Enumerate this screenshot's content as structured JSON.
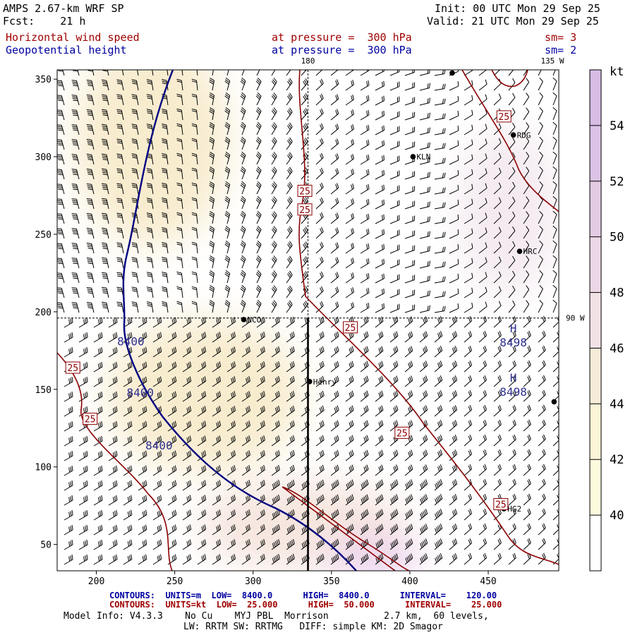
{
  "header": {
    "model": "AMPS 2.67-km WRF SP",
    "forecast": "Fcst:    21 h",
    "init": "Init: 00 UTC Mon 29 Sep 25",
    "valid": "Valid: 21 UTC Mon 29 Sep 25",
    "field1": "Horizontal wind speed",
    "field1_level": "at pressure =  300 hPa",
    "field1_sm": "sm= 3",
    "field2": "Geopotential height",
    "field2_level": "at pressure =  300 hPa",
    "field2_sm": "sm= 2"
  },
  "map": {
    "lon_labels": [
      "180",
      "135 W",
      "90 W"
    ],
    "x_ticks": [
      "200",
      "250",
      "300",
      "350",
      "400",
      "450"
    ],
    "y_ticks": [
      "350",
      "300",
      "250",
      "200",
      "150",
      "100",
      "50"
    ],
    "x_range": [
      175,
      495
    ],
    "y_range": [
      33,
      356
    ],
    "stations": [
      {
        "name": "",
        "x": 427,
        "y": 354
      },
      {
        "name": "RDG",
        "x": 466,
        "y": 314
      },
      {
        "name": "KLN",
        "x": 402,
        "y": 300
      },
      {
        "name": "HRC",
        "x": 470,
        "y": 239
      },
      {
        "name": "NCO",
        "x": 294,
        "y": 195
      },
      {
        "name": "Henry",
        "x": 336,
        "y": 155
      },
      {
        "name": "",
        "x": 492,
        "y": 142
      },
      {
        "name": "HG2",
        "x": 460,
        "y": 73
      }
    ],
    "highs": [
      {
        "letter": "H",
        "value": "8498",
        "x": 466,
        "y": 185
      },
      {
        "letter": "H",
        "value": "8498",
        "x": 466,
        "y": 153
      }
    ],
    "height_labels": [
      {
        "text": "8400",
        "x": 222,
        "y": 181
      },
      {
        "text": "8400",
        "x": 228,
        "y": 148
      },
      {
        "text": "8400",
        "x": 240,
        "y": 114
      }
    ],
    "speed_labels": [
      {
        "text": "25",
        "x": 460,
        "y": 326
      },
      {
        "text": "25",
        "x": 333,
        "y": 278
      },
      {
        "text": "25",
        "x": 333,
        "y": 266
      },
      {
        "text": "25",
        "x": 362,
        "y": 190
      },
      {
        "text": "25",
        "x": 185,
        "y": 164
      },
      {
        "text": "25",
        "x": 196,
        "y": 131
      },
      {
        "text": "25",
        "x": 395,
        "y": 122
      },
      {
        "text": "25",
        "x": 458,
        "y": 76
      }
    ]
  },
  "colorbar": {
    "unit": "kt",
    "labels": [
      "54",
      "52",
      "50",
      "48",
      "46",
      "44",
      "42",
      "40"
    ],
    "colors": [
      "#dcc3e6",
      "#e4cbe4",
      "#ecd7e6",
      "#f2e2e6",
      "#f7ecd8",
      "#fbf4d6",
      "#fdfade",
      "#ffffff"
    ]
  },
  "footer": {
    "contours1": "CONTOURS:  UNITS=m  LOW=  8400.0      HIGH=  8400.0      INTERVAL=    120.00",
    "contours2": "CONTOURS:  UNITS=kt  LOW=  25.000      HIGH=  50.000      INTERVAL=    25.000",
    "info1": "Model Info: V4.3.3    No Cu    MYJ PBL  Morrison          2.7 km,  60 levels,",
    "info2": "LW: RRTM SW: RRTMG   DIFF: simple KM: 2D Smagor"
  }
}
